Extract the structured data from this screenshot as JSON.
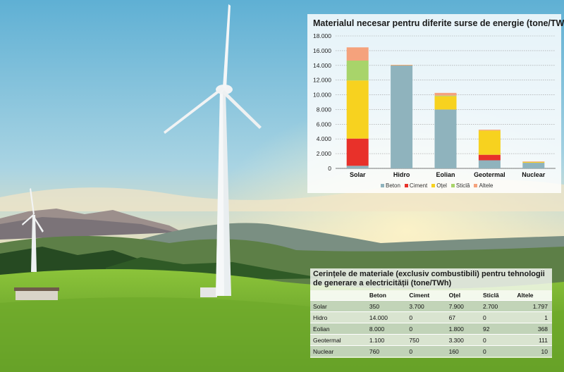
{
  "chart_data": {
    "type": "bar",
    "stacked": true,
    "title": "Materialul necesar pentru diferite surse de energie (tone/TWh)",
    "categories": [
      "Solar",
      "Hidro",
      "Eolian",
      "Geotermal",
      "Nuclear"
    ],
    "series": [
      {
        "name": "Beton",
        "color": "#8fb3bd",
        "values": [
          350,
          14000,
          8000,
          1100,
          760
        ]
      },
      {
        "name": "Ciment",
        "color": "#e8312a",
        "values": [
          3700,
          0,
          0,
          750,
          0
        ]
      },
      {
        "name": "Oțel",
        "color": "#f7d21f",
        "values": [
          7900,
          67,
          1800,
          3300,
          160
        ]
      },
      {
        "name": "Sticlă",
        "color": "#a8d46a",
        "values": [
          2700,
          0,
          92,
          0,
          0
        ]
      },
      {
        "name": "Altele",
        "color": "#f5a27c",
        "values": [
          1797,
          1,
          368,
          111,
          10
        ]
      }
    ],
    "ylim": [
      0,
      18000
    ],
    "yticks": [
      "0",
      "2.000",
      "4.000",
      "6.000",
      "8.000",
      "10.000",
      "12.000",
      "14.000",
      "16.000",
      "18.000"
    ],
    "yticks_values": [
      0,
      2000,
      4000,
      6000,
      8000,
      10000,
      12000,
      14000,
      16000,
      18000
    ],
    "grid": true,
    "legend": "bottom"
  },
  "table": {
    "title": "Cerințele de materiale (exclusiv combustibili) pentru tehnologii de generare a electricității (tone/TWh)",
    "headers": [
      "",
      "Beton",
      "Ciment",
      "Oțel",
      "Sticlă",
      "Altele"
    ],
    "rows": [
      [
        "Solar",
        "350",
        "3.700",
        "7.900",
        "2.700",
        "1.797"
      ],
      [
        "Hidro",
        "14.000",
        "0",
        "67",
        "0",
        "1"
      ],
      [
        "Eolian",
        "8.000",
        "0",
        "1.800",
        "92",
        "368"
      ],
      [
        "Geotermal",
        "1.100",
        "750",
        "3.300",
        "0",
        "111"
      ],
      [
        "Nuclear",
        "760",
        "0",
        "160",
        "0",
        "10"
      ]
    ]
  }
}
